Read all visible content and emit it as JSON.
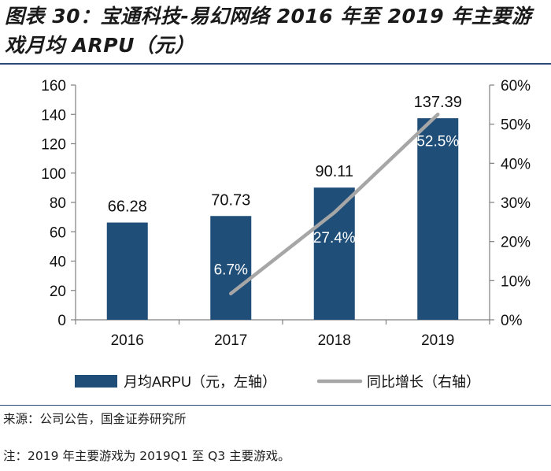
{
  "title": "图表 30：宝通科技-易幻网络 2016 年至 2019 年主要游戏月均 ARPU（元）",
  "source": "来源：公司公告，国金证券研究所",
  "footnote": "注：2019 年主要游戏为 2019Q1 至 Q3 主要游戏。",
  "colors": {
    "bar": "#1f4e79",
    "line": "#a6a6a6",
    "rule": "#2b4a75"
  },
  "chart_data": {
    "type": "bar",
    "categories": [
      "2016",
      "2017",
      "2018",
      "2019"
    ],
    "series": [
      {
        "name": "月均ARPU（元，左轴）",
        "type": "bar",
        "axis": "left",
        "values": [
          66.28,
          70.73,
          90.11,
          137.39
        ],
        "labels": [
          "66.28",
          "70.73",
          "90.11",
          "137.39"
        ]
      },
      {
        "name": "同比增长（右轴）",
        "type": "line",
        "axis": "right",
        "values": [
          null,
          6.7,
          27.4,
          52.5
        ],
        "labels": [
          "",
          "6.7%",
          "27.4%",
          "52.5%"
        ]
      }
    ],
    "ylim_left": [
      0,
      160
    ],
    "yticks_left": [
      "0",
      "20",
      "40",
      "60",
      "80",
      "100",
      "120",
      "140",
      "160"
    ],
    "ylim_right": [
      0,
      60
    ],
    "yticks_right": [
      "0%",
      "10%",
      "20%",
      "30%",
      "40%",
      "50%",
      "60%"
    ],
    "legend": "bottom",
    "grid": false
  }
}
